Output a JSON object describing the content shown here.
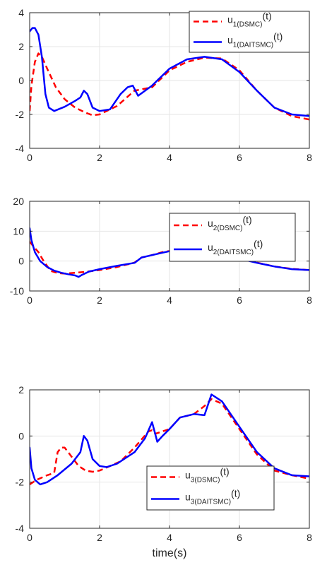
{
  "chart_data": [
    {
      "type": "line",
      "xlim": [
        0,
        8
      ],
      "ylim": [
        -4,
        4
      ],
      "xticks": [
        0,
        2,
        4,
        6,
        8
      ],
      "yticks": [
        -4,
        -2,
        0,
        2,
        4
      ],
      "grid": true,
      "legend_position": "top-right",
      "series": [
        {
          "name": "u1(DSMC)(t)",
          "legend": {
            "main": "u",
            "sub": "1(DSMC)",
            "suffix": "(t)"
          },
          "color": "#ff0000",
          "dash": true,
          "x": [
            0,
            0.05,
            0.15,
            0.25,
            0.35,
            0.5,
            0.75,
            1.0,
            1.3,
            1.6,
            1.8,
            2.0,
            2.2,
            2.5,
            3.0,
            3.5,
            4.0,
            4.5,
            5.0,
            5.5,
            6.0,
            6.5,
            7.0,
            7.5,
            8.0
          ],
          "y": [
            -1.8,
            -0.3,
            1.1,
            1.6,
            1.4,
            0.7,
            -0.4,
            -1.1,
            -1.6,
            -1.9,
            -2.05,
            -2.0,
            -1.8,
            -1.5,
            -0.6,
            -0.4,
            0.6,
            1.1,
            1.35,
            1.3,
            0.6,
            -0.6,
            -1.6,
            -2.1,
            -2.3
          ]
        },
        {
          "name": "u1(DAITSMC)(t)",
          "legend": {
            "main": "u",
            "sub": "1(DAITSMC)",
            "suffix": "(t)"
          },
          "color": "#0000ff",
          "dash": false,
          "x": [
            0,
            0.08,
            0.15,
            0.25,
            0.35,
            0.45,
            0.55,
            0.7,
            1.0,
            1.3,
            1.45,
            1.55,
            1.65,
            1.8,
            2.0,
            2.3,
            2.6,
            2.8,
            2.95,
            3.1,
            3.5,
            4.0,
            4.5,
            5.0,
            5.5,
            6.0,
            6.5,
            7.0,
            7.5,
            8.0
          ],
          "y": [
            2.9,
            3.1,
            3.1,
            2.7,
            1.4,
            -0.8,
            -1.6,
            -1.8,
            -1.55,
            -1.2,
            -1.0,
            -0.6,
            -0.8,
            -1.6,
            -1.8,
            -1.7,
            -0.8,
            -0.4,
            -0.3,
            -0.9,
            -0.3,
            0.7,
            1.25,
            1.4,
            1.25,
            0.5,
            -0.6,
            -1.6,
            -2.0,
            -2.1
          ]
        }
      ]
    },
    {
      "type": "line",
      "xlim": [
        0,
        8
      ],
      "ylim": [
        -10,
        20
      ],
      "xticks": [
        0,
        2,
        4,
        6,
        8
      ],
      "yticks": [
        -10,
        0,
        10,
        20
      ],
      "grid": true,
      "legend_position": "top-right",
      "series": [
        {
          "name": "u2(DSMC)(t)",
          "legend": {
            "main": "u",
            "sub": "2(DSMC)",
            "suffix": "(t)"
          },
          "color": "#ff0000",
          "dash": true,
          "x": [
            0,
            0.1,
            0.25,
            0.4,
            0.6,
            0.8,
            1.0,
            1.2,
            1.4,
            1.6,
            2.0,
            2.5,
            3.0,
            3.2,
            3.5,
            3.8,
            4.0,
            4.2,
            4.5,
            5.0,
            5.5,
            6.0,
            6.5,
            7.0,
            7.5,
            8.0
          ],
          "y": [
            6.5,
            5.0,
            3.0,
            0.0,
            -3.3,
            -4.0,
            -4.2,
            -4.0,
            -3.8,
            -3.6,
            -3.0,
            -2.0,
            -0.5,
            1.2,
            2.0,
            3.0,
            3.4,
            2.8,
            3.0,
            3.2,
            2.5,
            1.0,
            -0.5,
            -1.8,
            -2.6,
            -3.0
          ]
        },
        {
          "name": "u2(DAITSMC)(t)",
          "legend": {
            "main": "u",
            "sub": "2(DAITSMC)",
            "suffix": "(t)"
          },
          "color": "#0000ff",
          "dash": false,
          "x": [
            0,
            0.05,
            0.15,
            0.3,
            0.5,
            0.7,
            0.9,
            1.1,
            1.3,
            1.4,
            1.5,
            1.7,
            2.0,
            2.5,
            3.0,
            3.2,
            3.5,
            3.8,
            4.0,
            4.2,
            4.5,
            5.0,
            5.5,
            6.0,
            6.5,
            7.0,
            7.5,
            8.0
          ],
          "y": [
            11.0,
            7.0,
            3.0,
            0.0,
            -2.0,
            -3.2,
            -3.9,
            -4.4,
            -4.8,
            -5.3,
            -4.6,
            -3.5,
            -2.7,
            -1.6,
            -0.6,
            1.2,
            2.0,
            2.8,
            3.3,
            2.6,
            2.9,
            3.1,
            2.3,
            0.8,
            -0.6,
            -1.8,
            -2.7,
            -3.0
          ]
        }
      ]
    },
    {
      "type": "line",
      "xlim": [
        0,
        8
      ],
      "ylim": [
        -4,
        2
      ],
      "xticks": [
        0,
        2,
        4,
        6,
        8
      ],
      "yticks": [
        -4,
        -2,
        0,
        2
      ],
      "grid": true,
      "legend_position": "bottom-right",
      "xlabel": "time(s)",
      "series": [
        {
          "name": "u3(DSMC)(t)",
          "legend": {
            "main": "u",
            "sub": "3(DSMC)",
            "suffix": "(t)"
          },
          "color": "#ff0000",
          "dash": true,
          "x": [
            0,
            0.2,
            0.5,
            0.7,
            0.8,
            0.9,
            1.0,
            1.2,
            1.4,
            1.6,
            1.8,
            2.0,
            2.3,
            2.6,
            3.0,
            3.4,
            3.5,
            3.6,
            4.0,
            4.3,
            4.7,
            5.0,
            5.2,
            5.5,
            6.0,
            6.5,
            7.0,
            7.5,
            8.0
          ],
          "y": [
            -2.1,
            -1.9,
            -1.7,
            -1.6,
            -0.7,
            -0.5,
            -0.5,
            -0.9,
            -1.3,
            -1.5,
            -1.55,
            -1.5,
            -1.3,
            -1.1,
            -0.5,
            0.2,
            0.25,
            0.1,
            0.3,
            0.8,
            0.95,
            1.3,
            1.6,
            1.4,
            0.3,
            -0.8,
            -1.5,
            -1.7,
            -1.85
          ]
        },
        {
          "name": "u3(DAITSMC)(t)",
          "legend": {
            "main": "u",
            "sub": "3(DAITSMC)",
            "suffix": "(t)"
          },
          "color": "#0000ff",
          "dash": false,
          "x": [
            0,
            0.05,
            0.15,
            0.3,
            0.5,
            0.8,
            1.2,
            1.45,
            1.55,
            1.65,
            1.8,
            2.0,
            2.2,
            2.5,
            3.0,
            3.3,
            3.5,
            3.65,
            3.8,
            4.0,
            4.3,
            4.7,
            5.0,
            5.2,
            5.5,
            6.0,
            6.5,
            7.0,
            7.5,
            8.0
          ],
          "y": [
            -0.5,
            -1.4,
            -1.9,
            -2.1,
            -2.0,
            -1.7,
            -1.2,
            -0.7,
            0.0,
            -0.2,
            -1.0,
            -1.3,
            -1.35,
            -1.2,
            -0.7,
            -0.1,
            0.6,
            -0.25,
            0.0,
            0.3,
            0.8,
            0.95,
            0.9,
            1.8,
            1.5,
            0.4,
            -0.7,
            -1.4,
            -1.7,
            -1.75
          ]
        }
      ]
    }
  ]
}
